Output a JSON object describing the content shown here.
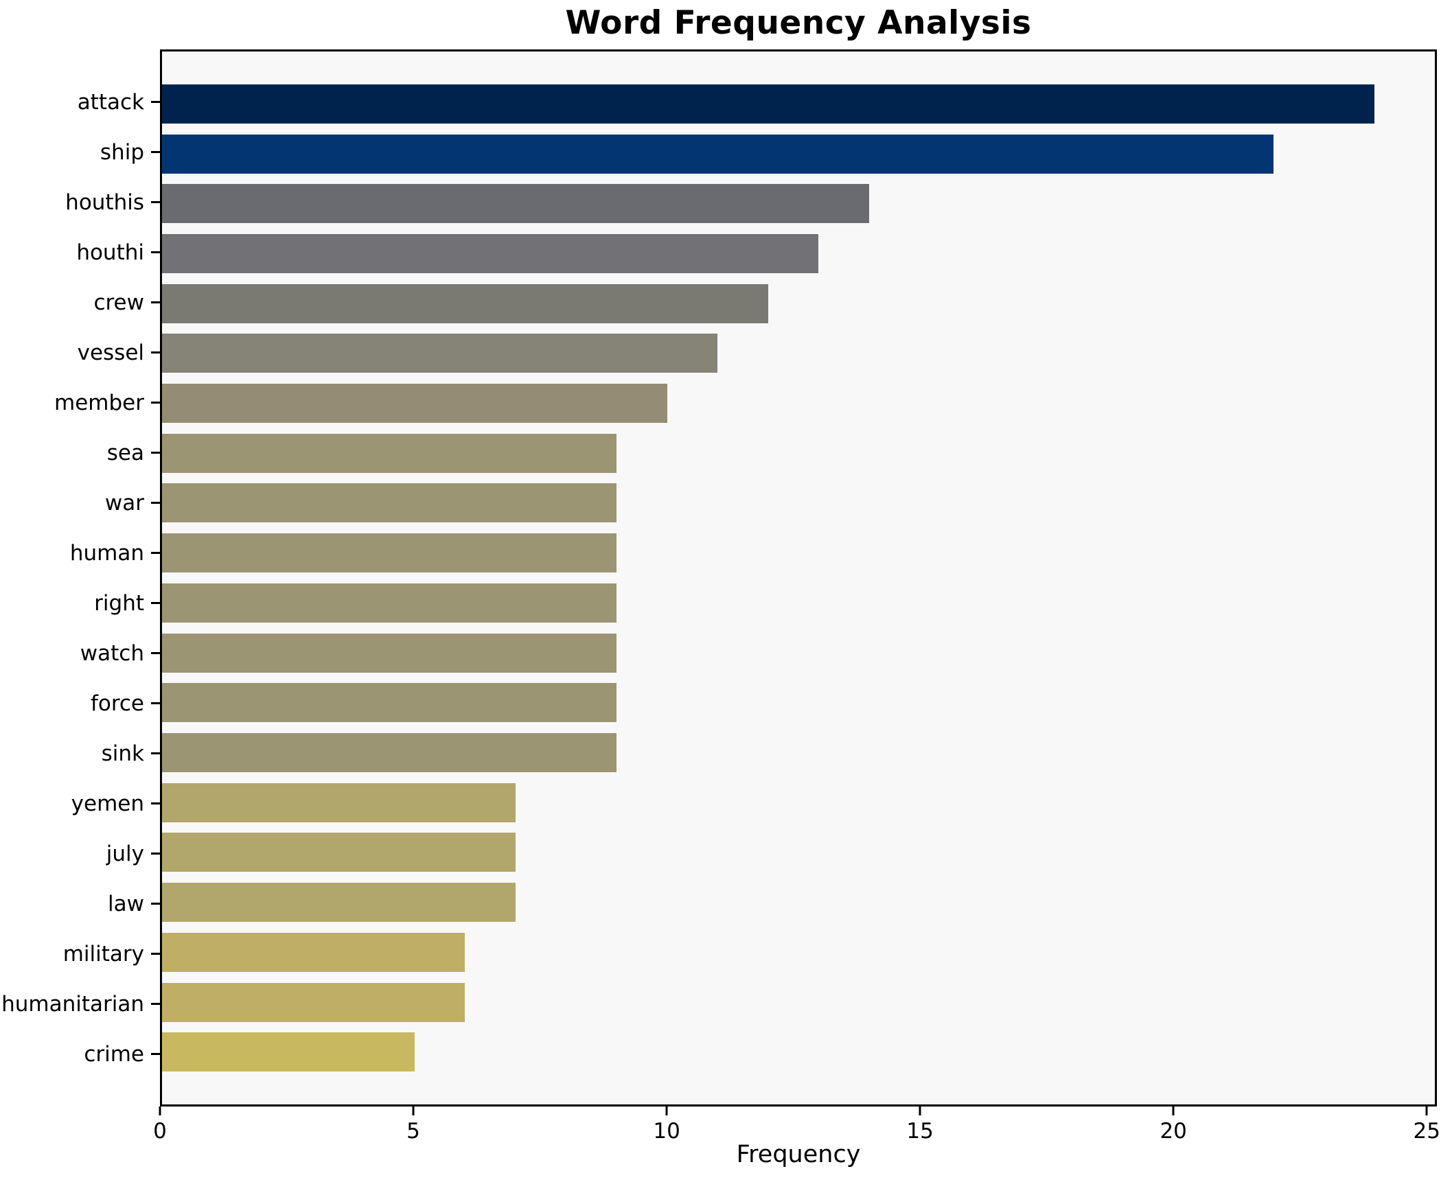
{
  "chart_data": {
    "type": "bar",
    "orientation": "horizontal",
    "title": "Word Frequency Analysis",
    "xlabel": "Frequency",
    "ylabel": "",
    "xlim": [
      0,
      25.2
    ],
    "xticks": [
      0,
      5,
      10,
      15,
      20,
      25
    ],
    "grid": false,
    "legend": null,
    "plot_background": "#F8F8F9",
    "figure_background": "#FFFFFF",
    "categories": [
      "attack",
      "ship",
      "houthis",
      "houthi",
      "crew",
      "vessel",
      "member",
      "sea",
      "war",
      "human",
      "right",
      "watch",
      "force",
      "sink",
      "yemen",
      "july",
      "law",
      "military",
      "humanitarian",
      "crime"
    ],
    "values": [
      24,
      22,
      14,
      13,
      12,
      11,
      10,
      9,
      9,
      9,
      9,
      9,
      9,
      9,
      7,
      7,
      7,
      6,
      6,
      5
    ],
    "bar_colors": [
      "#00234E",
      "#043573",
      "#6A6B71",
      "#727276",
      "#7B7A72",
      "#868377",
      "#948D74",
      "#9C9573",
      "#9C9573",
      "#9C9573",
      "#9C9573",
      "#9C9573",
      "#9C9573",
      "#9C9573",
      "#B2A76A",
      "#B2A76A",
      "#B2A76A",
      "#BFAE66",
      "#BFAE66",
      "#C8B961"
    ]
  }
}
